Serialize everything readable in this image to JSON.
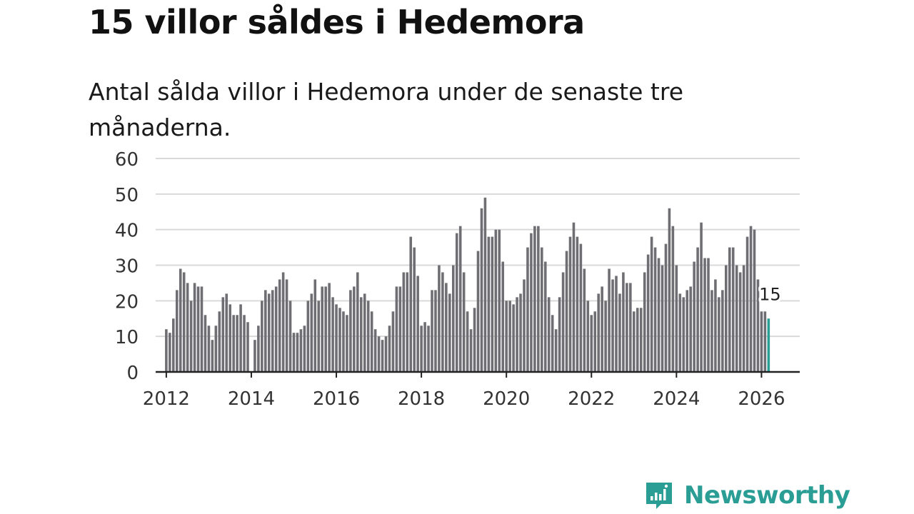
{
  "header": {
    "title": "15 villor såldes i Hedemora",
    "subtitle": "Antal sålda villor i Hedemora under de senaste tre månaderna."
  },
  "brand": {
    "name": "Newsworthy",
    "color": "#2a9d94"
  },
  "chart_data": {
    "type": "bar",
    "title": "15 villor såldes i Hedemora",
    "subtitle": "Antal sålda villor i Hedemora under de senaste tre månaderna.",
    "xlabel": "",
    "ylabel": "",
    "ylim": [
      0,
      60
    ],
    "yticks": [
      0,
      10,
      20,
      30,
      40,
      50,
      60
    ],
    "xlim": [
      2011.75,
      2026.9
    ],
    "xticks": [
      "2012",
      "2014",
      "2016",
      "2018",
      "2020",
      "2022",
      "2024",
      "2026"
    ],
    "grid": true,
    "start": "2012-01",
    "frequency": "monthly",
    "bar_color": "#6e6e73",
    "highlight_color": "#2a9d94",
    "highlight_label": "15",
    "values": [
      12,
      11,
      15,
      23,
      29,
      28,
      25,
      20,
      25,
      24,
      24,
      16,
      13,
      9,
      13,
      17,
      21,
      22,
      19,
      16,
      16,
      19,
      16,
      14,
      0,
      9,
      13,
      20,
      23,
      22,
      23,
      24,
      26,
      28,
      26,
      20,
      11,
      11,
      12,
      13,
      20,
      22,
      26,
      20,
      24,
      24,
      25,
      21,
      19,
      18,
      17,
      16,
      23,
      24,
      28,
      21,
      22,
      20,
      17,
      12,
      10,
      9,
      10,
      13,
      17,
      24,
      24,
      28,
      28,
      38,
      35,
      27,
      13,
      14,
      13,
      23,
      23,
      30,
      28,
      25,
      22,
      30,
      39,
      41,
      28,
      17,
      12,
      18,
      34,
      46,
      49,
      38,
      38,
      40,
      40,
      31,
      20,
      20,
      19,
      21,
      22,
      26,
      35,
      39,
      41,
      41,
      35,
      31,
      21,
      16,
      12,
      21,
      28,
      34,
      38,
      42,
      38,
      36,
      29,
      20,
      16,
      17,
      22,
      24,
      20,
      29,
      26,
      27,
      22,
      28,
      25,
      25,
      17,
      18,
      18,
      28,
      33,
      38,
      35,
      32,
      30,
      36,
      46,
      41,
      30,
      22,
      21,
      23,
      24,
      31,
      35,
      42,
      32,
      32,
      23,
      26,
      21,
      23,
      30,
      35,
      35,
      30,
      28,
      30,
      38,
      41,
      40,
      26,
      17,
      17,
      15
    ]
  }
}
